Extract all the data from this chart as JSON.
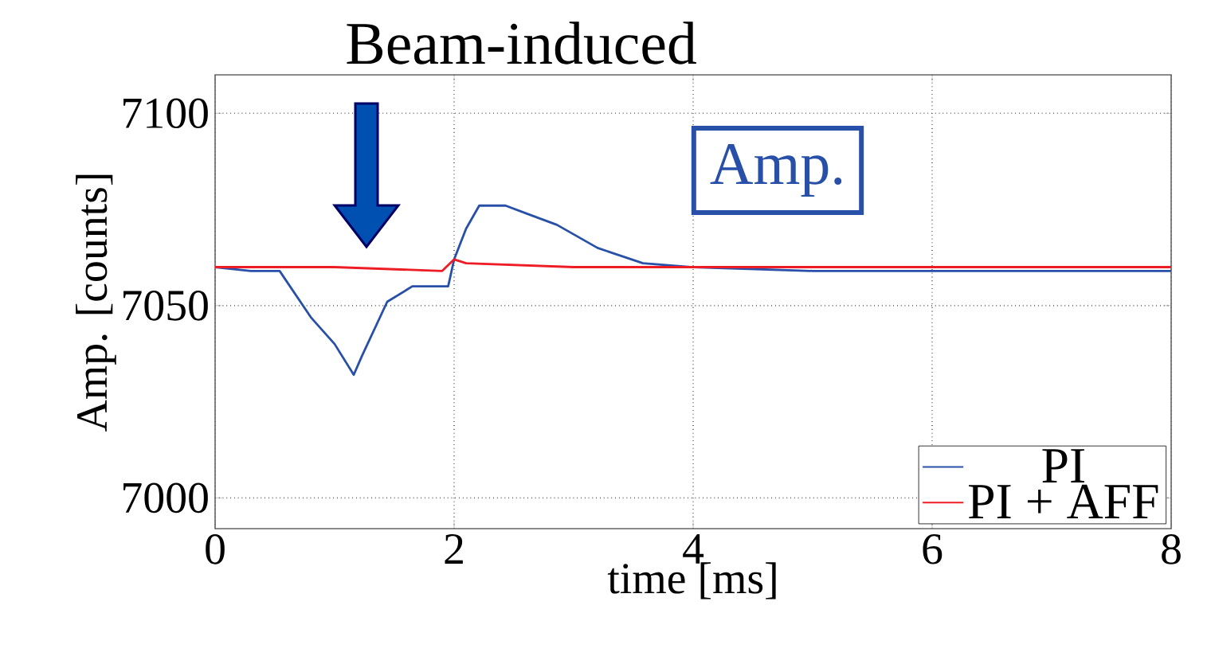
{
  "chart_data": {
    "type": "line",
    "xlabel": "time [ms]",
    "ylabel": "Amp. [counts]",
    "annotations": [
      "Beam-induced",
      "Amp."
    ],
    "xlim": [
      0,
      8
    ],
    "ylim": [
      6992,
      7110
    ],
    "xticks": [
      0,
      2,
      4,
      6,
      8
    ],
    "yticks": [
      7000,
      7050,
      7100
    ],
    "grid": true,
    "legend": "bottom right",
    "series": [
      {
        "name": "PI",
        "color": "#2850a8",
        "x": [
          0,
          0.3,
          0.54,
          0.8,
          1.0,
          1.16,
          1.23,
          1.44,
          1.65,
          1.95,
          2.0,
          2.1,
          2.21,
          2.43,
          2.6,
          2.86,
          3.2,
          3.58,
          4,
          5,
          6,
          7,
          8
        ],
        "values": [
          7060,
          7059,
          7059,
          7047,
          7040,
          7032,
          7037,
          7051,
          7055,
          7055,
          7062,
          7070,
          7076,
          7076,
          7074,
          7071,
          7065,
          7061,
          7060,
          7059,
          7059,
          7059,
          7059
        ]
      },
      {
        "name": "PI + AFF",
        "color": "#ee1c25",
        "x": [
          0,
          1,
          1.9,
          2.0,
          2.1,
          3,
          4,
          5,
          6,
          7,
          8
        ],
        "values": [
          7060,
          7060,
          7059,
          7062,
          7061,
          7060,
          7060,
          7060,
          7060,
          7060,
          7060
        ]
      }
    ]
  }
}
